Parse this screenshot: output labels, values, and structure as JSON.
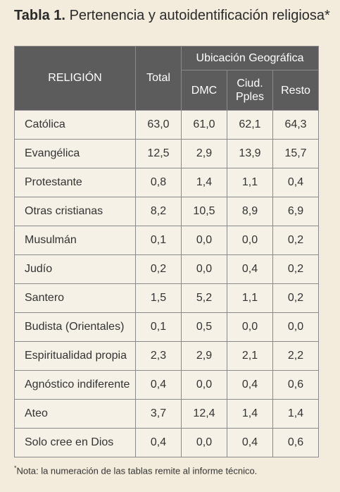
{
  "title": {
    "label": "Tabla 1.",
    "text": "Pertenencia y autoidentificación religiosa*"
  },
  "table": {
    "headers": {
      "religion": "RELIGIÓN",
      "total": "Total",
      "group": "Ubicación Geográfica",
      "sub": [
        "DMC",
        "Ciud. Pples",
        "Resto"
      ]
    },
    "rows": [
      {
        "religion": "Católica",
        "total": "63,0",
        "dmc": "61,0",
        "ciud": "62,1",
        "resto": "64,3"
      },
      {
        "religion": "Evangélica",
        "total": "12,5",
        "dmc": "2,9",
        "ciud": "13,9",
        "resto": "15,7"
      },
      {
        "religion": "Protestante",
        "total": "0,8",
        "dmc": "1,4",
        "ciud": "1,1",
        "resto": "0,4"
      },
      {
        "religion": "Otras cristianas",
        "total": "8,2",
        "dmc": "10,5",
        "ciud": "8,9",
        "resto": "6,9"
      },
      {
        "religion": "Musulmán",
        "total": "0,1",
        "dmc": "0,0",
        "ciud": "0,0",
        "resto": "0,2"
      },
      {
        "religion": "Judío",
        "total": "0,2",
        "dmc": "0,0",
        "ciud": "0,4",
        "resto": "0,2"
      },
      {
        "religion": "Santero",
        "total": "1,5",
        "dmc": "5,2",
        "ciud": "1,1",
        "resto": "0,2"
      },
      {
        "religion": "Budista (Orientales)",
        "total": "0,1",
        "dmc": "0,5",
        "ciud": "0,0",
        "resto": "0,0"
      },
      {
        "religion": "Espiritualidad propia",
        "total": "2,3",
        "dmc": "2,9",
        "ciud": "2,1",
        "resto": "2,2"
      },
      {
        "religion": "Agnóstico indiferente",
        "total": "0,4",
        "dmc": "0,0",
        "ciud": "0,4",
        "resto": "0,6"
      },
      {
        "religion": "Ateo",
        "total": "3,7",
        "dmc": "12,4",
        "ciud": "1,4",
        "resto": "1,4"
      },
      {
        "religion": "Solo cree en Dios",
        "total": "0,4",
        "dmc": "0,0",
        "ciud": "0,4",
        "resto": "0,6"
      }
    ]
  },
  "footnote": {
    "marker": "*",
    "text": "Nota: la numeración de las tablas remite al informe técnico."
  }
}
